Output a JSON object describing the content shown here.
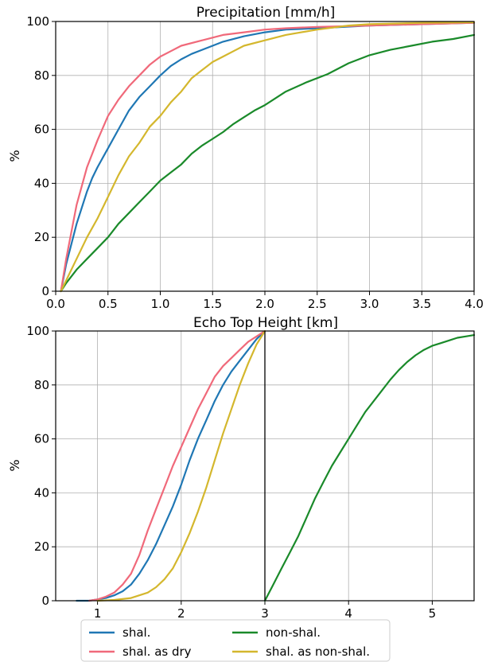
{
  "colors": {
    "shal": "#1f77b4",
    "shal_dry": "#f0697a",
    "nonshal": "#1a8a2a",
    "shal_nonshal": "#d4b72d"
  },
  "legend": {
    "placement": "bottom-center",
    "entries": [
      {
        "key": "shal",
        "label": "shal."
      },
      {
        "key": "nonshal",
        "label": "non-shal."
      },
      {
        "key": "shal_dry",
        "label": "shal. as dry"
      },
      {
        "key": "shal_nonshal",
        "label": "shal. as non-shal."
      }
    ]
  },
  "chart_data": [
    {
      "type": "line",
      "title": "Precipitation [mm/h]",
      "xlabel": "",
      "ylabel": "%",
      "xlim": [
        0,
        4
      ],
      "ylim": [
        0,
        100
      ],
      "xticks": [
        "0.0",
        "0.5",
        "1.0",
        "1.5",
        "2.0",
        "2.5",
        "3.0",
        "3.5",
        "4.0"
      ],
      "yticks": [
        "0",
        "20",
        "40",
        "60",
        "80",
        "100"
      ],
      "grid": true,
      "series": [
        {
          "key": "shal",
          "name": "shal.",
          "x": [
            0.05,
            0.1,
            0.2,
            0.3,
            0.35,
            0.4,
            0.5,
            0.6,
            0.7,
            0.8,
            0.9,
            1.0,
            1.1,
            1.2,
            1.3,
            1.4,
            1.5,
            1.6,
            1.8,
            2.0,
            2.2,
            2.5,
            3.0,
            3.5,
            4.0
          ],
          "y": [
            0,
            10,
            25,
            37,
            42,
            46,
            53,
            60,
            67,
            72,
            76,
            80,
            83.5,
            86,
            88,
            89.5,
            91,
            92.5,
            94.5,
            96,
            97,
            97.5,
            98.5,
            99,
            99.5
          ]
        },
        {
          "key": "shal_dry",
          "name": "shal. as dry",
          "x": [
            0.05,
            0.1,
            0.2,
            0.3,
            0.4,
            0.5,
            0.6,
            0.7,
            0.8,
            0.9,
            1.0,
            1.1,
            1.2,
            1.4,
            1.6,
            1.8,
            2.0,
            2.2,
            2.5,
            3.0,
            3.5,
            4.0
          ],
          "y": [
            0,
            12,
            32,
            46,
            56,
            65,
            71,
            76,
            80,
            84,
            87,
            89,
            91,
            93,
            95,
            96,
            97,
            97.5,
            98,
            98.5,
            99,
            99.5
          ]
        },
        {
          "key": "nonshal",
          "name": "non-shal.",
          "x": [
            0.05,
            0.1,
            0.2,
            0.3,
            0.4,
            0.5,
            0.6,
            0.7,
            0.8,
            0.9,
            1.0,
            1.1,
            1.2,
            1.3,
            1.4,
            1.5,
            1.6,
            1.7,
            1.8,
            1.9,
            2.0,
            2.2,
            2.4,
            2.6,
            2.8,
            3.0,
            3.2,
            3.4,
            3.6,
            3.8,
            4.0
          ],
          "y": [
            0,
            3,
            8,
            12,
            16,
            20,
            25,
            29,
            33,
            37,
            41,
            44,
            47,
            51,
            54,
            56.5,
            59,
            62,
            64.5,
            67,
            69,
            74,
            77.5,
            80.5,
            84.5,
            87.5,
            89.5,
            91,
            92.5,
            93.5,
            95
          ]
        },
        {
          "key": "shal_nonshal",
          "name": "shal. as non-shal.",
          "x": [
            0.05,
            0.1,
            0.2,
            0.3,
            0.4,
            0.5,
            0.6,
            0.7,
            0.8,
            0.9,
            1.0,
            1.1,
            1.2,
            1.3,
            1.4,
            1.5,
            1.6,
            1.7,
            1.8,
            2.0,
            2.2,
            2.5,
            2.8,
            3.0,
            3.5,
            4.0
          ],
          "y": [
            0,
            4,
            12,
            20,
            27,
            35,
            43,
            50,
            55,
            61,
            65,
            70,
            74,
            79,
            82,
            85,
            87,
            89,
            91,
            93,
            95,
            97,
            98.5,
            99,
            99.5,
            99.7
          ]
        }
      ]
    },
    {
      "type": "line",
      "title": "Echo Top Height [km]",
      "xlabel": "",
      "ylabel": "%",
      "xlim": [
        0.5,
        5.5
      ],
      "ylim": [
        0,
        100
      ],
      "xticks": [
        "1",
        "2",
        "3",
        "4",
        "5"
      ],
      "yticks": [
        "0",
        "20",
        "40",
        "60",
        "80",
        "100"
      ],
      "grid": true,
      "vline_x": 3,
      "series": [
        {
          "key": "shal",
          "name": "shal.",
          "x": [
            0.75,
            0.9,
            1.0,
            1.1,
            1.2,
            1.3,
            1.4,
            1.5,
            1.6,
            1.7,
            1.8,
            1.9,
            2.0,
            2.1,
            2.2,
            2.3,
            2.4,
            2.5,
            2.6,
            2.7,
            2.8,
            2.9,
            3.0
          ],
          "y": [
            0,
            0,
            0.5,
            1,
            2,
            3.5,
            6,
            10,
            15,
            21,
            28,
            35,
            43,
            52,
            60,
            67,
            74,
            80,
            85,
            89,
            93,
            97,
            100
          ]
        },
        {
          "key": "shal_dry",
          "name": "shal. as dry",
          "x": [
            0.9,
            1.0,
            1.1,
            1.2,
            1.3,
            1.4,
            1.5,
            1.6,
            1.7,
            1.8,
            1.9,
            2.0,
            2.1,
            2.2,
            2.3,
            2.4,
            2.5,
            2.6,
            2.7,
            2.8,
            2.9,
            3.0
          ],
          "y": [
            0,
            0.5,
            1.5,
            3,
            6,
            10,
            17,
            26,
            34,
            42,
            50,
            57,
            64,
            71,
            77,
            83,
            87,
            90,
            93,
            96,
            98,
            100
          ]
        },
        {
          "key": "nonshal",
          "name": "non-shal.",
          "x": [
            3.0,
            3.1,
            3.2,
            3.3,
            3.4,
            3.5,
            3.6,
            3.7,
            3.8,
            3.9,
            4.0,
            4.1,
            4.2,
            4.3,
            4.4,
            4.5,
            4.6,
            4.7,
            4.8,
            4.9,
            5.0,
            5.1,
            5.2,
            5.3,
            5.4,
            5.5
          ],
          "y": [
            0,
            6,
            12,
            18,
            24,
            31,
            38,
            44,
            50,
            55,
            60,
            65,
            70,
            74,
            78,
            82,
            85.5,
            88.5,
            91,
            93,
            94.5,
            95.5,
            96.5,
            97.5,
            98,
            98.5
          ]
        },
        {
          "key": "shal_nonshal",
          "name": "shal. as non-shal.",
          "x": [
            1.0,
            1.2,
            1.4,
            1.6,
            1.7,
            1.8,
            1.9,
            2.0,
            2.1,
            2.2,
            2.3,
            2.4,
            2.5,
            2.6,
            2.7,
            2.8,
            2.9,
            3.0
          ],
          "y": [
            0,
            0.3,
            1,
            3,
            5,
            8,
            12,
            18,
            25,
            33,
            42,
            52,
            62,
            71,
            80,
            88,
            95,
            100
          ]
        }
      ]
    }
  ]
}
